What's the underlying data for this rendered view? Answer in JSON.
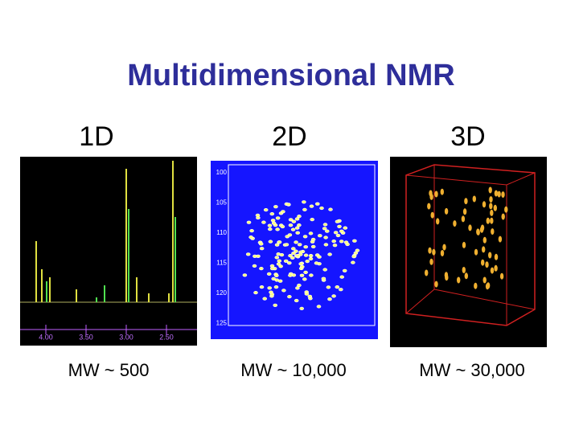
{
  "title": "Multidimensional NMR",
  "panels": [
    {
      "heading": "1D",
      "caption": "MW ~ 500",
      "ticks": [
        "4.00",
        "3.50",
        "3.00",
        "2.50"
      ]
    },
    {
      "heading": "2D",
      "caption": "MW ~ 10,000",
      "ticks": [
        "100",
        "105",
        "110",
        "115",
        "120",
        "125"
      ]
    },
    {
      "heading": "3D",
      "caption": "MW ~ 30,000"
    }
  ]
}
